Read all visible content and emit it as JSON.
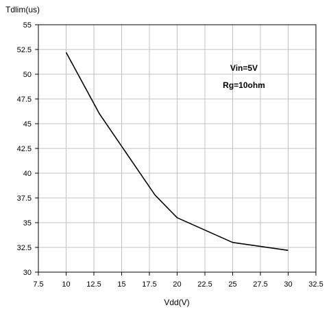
{
  "chart_data": {
    "type": "line",
    "title": "",
    "xlabel": "Vdd(V)",
    "ylabel": "Tdlim(us)",
    "xlim": [
      7.5,
      32.5
    ],
    "ylim": [
      30,
      55
    ],
    "xticks": [
      "7.5",
      "10",
      "12.5",
      "15",
      "17.5",
      "20",
      "22.5",
      "25",
      "27.5",
      "30",
      "32.5"
    ],
    "yticks": [
      "55",
      "52.5",
      "50",
      "47.5",
      "45",
      "42.5",
      "40",
      "37.5",
      "35",
      "32.5",
      "30"
    ],
    "grid": true,
    "series": [
      {
        "x": [
          10,
          13,
          18,
          20,
          25,
          30
        ],
        "y": [
          52.2,
          46.0,
          37.8,
          35.5,
          33.0,
          32.2
        ]
      }
    ],
    "annotations": [
      "Vin=5V",
      "Rg=10ohm"
    ],
    "colors": {
      "line": "#000000",
      "grid": "#c0c0c0",
      "frame": "#000000"
    }
  }
}
